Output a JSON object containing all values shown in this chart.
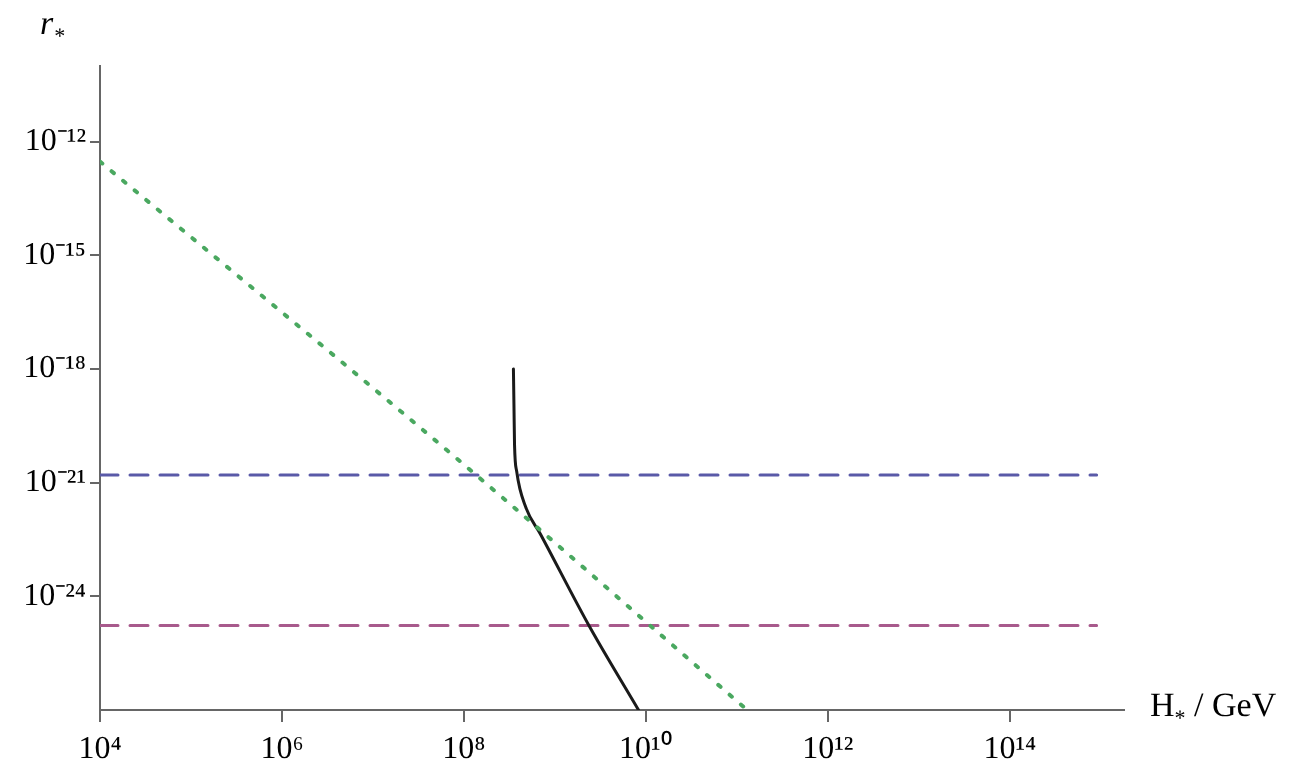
{
  "chart_data": {
    "type": "line",
    "xlabel": "H$_{*}$ / GeV",
    "ylabel": "r$_{*}$",
    "log": "xy",
    "grid": false,
    "legend": false,
    "marker": "none",
    "xlim": [
      10000.0,
      1800000000000000.0
    ],
    "ylim": [
      1e-27,
      1e-10
    ],
    "xticks": [
      {
        "value": 10000.0,
        "label": "10⁴"
      },
      {
        "value": 1000000.0,
        "label": "10⁶"
      },
      {
        "value": 100000000.0,
        "label": "10⁸"
      },
      {
        "value": 10000000000.0,
        "label": "10¹⁰"
      },
      {
        "value": 1000000000000.0,
        "label": "10¹²"
      },
      {
        "value": 100000000000000.0,
        "label": "10¹⁴"
      }
    ],
    "yticks": [
      {
        "value": 1e-12,
        "label": "10⁻¹²"
      },
      {
        "value": 1e-15,
        "label": "10⁻¹⁵"
      },
      {
        "value": 1e-18,
        "label": "10⁻¹⁸"
      },
      {
        "value": 1e-21,
        "label": "10⁻²¹"
      },
      {
        "value": 1e-24,
        "label": "10⁻²⁴"
      }
    ],
    "series": [
      {
        "color": "#4aa860",
        "line_style": "dotted",
        "x": [
          10000.0,
          100000000.0,
          130000000000.0
        ],
        "values": [
          3e-13,
          3e-21,
          1e-27
        ]
      },
      {
        "color": "#1a1a1a",
        "line_style": "solid",
        "x": [
          350000000.0,
          355000000.0,
          360000000.0,
          380000000.0,
          480000000.0,
          690000000.0,
          2400000000.0,
          8300000000.0
        ],
        "values": [
          1e-18,
          1e-19,
          1e-20,
          2e-21,
          2.2e-22,
          4.5e-23,
          1.6e-25,
          1e-27
        ]
      },
      {
        "color": "#5a5aa8",
        "line_style": "dashed",
        "x": [
          10000.0,
          900000000000000.0
        ],
        "values": [
          1.6e-21,
          1.6e-21
        ]
      },
      {
        "color": "#a85a8c",
        "line_style": "dashed",
        "x": [
          10000.0,
          900000000000000.0
        ],
        "values": [
          1.7e-25,
          1.7e-25
        ]
      }
    ]
  }
}
